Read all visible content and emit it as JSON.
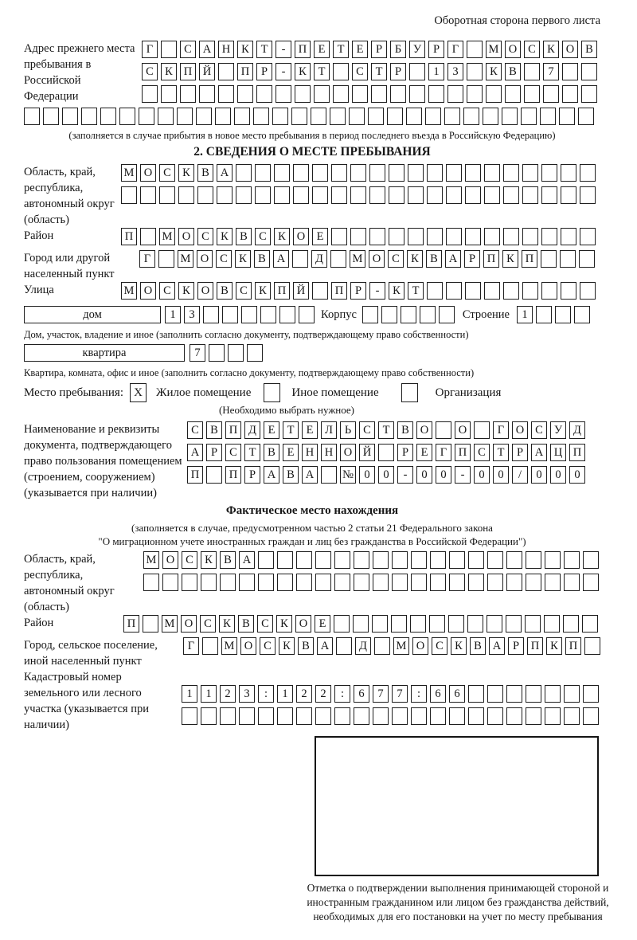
{
  "header": {
    "note": "Оборотная сторона первого листа"
  },
  "prev_address": {
    "label": "Адрес прежнего места пребывания в Российской Федерации",
    "rows": [
      {
        "chars": "Г САНКТ-ПЕТЕРБУРГ МОСКОВ",
        "count": 24
      },
      {
        "chars": "СКПЙ ПР-КТ СТР 13 КВ 7",
        "count": 24
      },
      {
        "chars": "",
        "count": 24
      },
      {
        "chars": "",
        "count": 30
      }
    ],
    "caption": "(заполняется в случае прибытия в новое место пребывания в период последнего въезда в Российскую Федерацию)"
  },
  "section2": {
    "title": "2. СВЕДЕНИЯ О МЕСТЕ ПРЕБЫВАНИЯ",
    "region": {
      "label": "Область, край, республика, автономный округ (область)",
      "rows": [
        {
          "chars": "МОСКВА",
          "count": 25
        },
        {
          "chars": "",
          "count": 25
        }
      ]
    },
    "district": {
      "label": "Район",
      "row": {
        "chars": "П МОСКВСКОЕ",
        "count": 25
      }
    },
    "city": {
      "label": "Город или другой населенный пункт",
      "row": {
        "chars": "Г МОСКВА Д МОСКВАРПКП",
        "count": 24
      }
    },
    "street": {
      "label": "Улица",
      "row": {
        "chars": "МОСКОВСКПЙ ПР-КТ",
        "count": 25
      }
    },
    "house": {
      "type_label": "дом",
      "number": {
        "chars": "13",
        "count": 8
      },
      "korpus_label": "Корпус",
      "korpus": {
        "chars": "",
        "count": 5
      },
      "stroenie_label": "Строение",
      "stroenie": {
        "chars": "1",
        "count": 4
      },
      "caption": "Дом, участок, владение и иное (заполнить согласно документу, подтверждающему право собственности)"
    },
    "apartment": {
      "type_label": "квартира",
      "number": {
        "chars": "7",
        "count": 4
      },
      "caption": "Квартира, комната, офис и иное (заполнить согласно документу, подтверждающему право собственности)"
    },
    "stay": {
      "label": "Место пребывания:",
      "options": [
        {
          "label": "Жилое помещение",
          "mark": "X"
        },
        {
          "label": "Иное помещение",
          "mark": ""
        },
        {
          "label": "Организация",
          "mark": ""
        }
      ],
      "caption": "(Необходимо выбрать нужное)"
    },
    "document": {
      "label": "Наименование и реквизиты документа, подтверждающего право пользования помещением (строением, сооружением) (указывается при наличии)",
      "rows": [
        {
          "chars": "СВПДЕТЕЛЬСТВО О ГОСУД",
          "count": 21
        },
        {
          "chars": "АРСТВЕННОЙ РЕГПСТРАЦП",
          "count": 21
        },
        {
          "chars": "П ПРАВА №00-00-00/000",
          "count": 21
        }
      ]
    }
  },
  "actual_location": {
    "title": "Фактическое место нахождения",
    "caption_line1": "(заполняется в случае, предусмотренном частью 2 статьи 21 Федерального закона",
    "caption_line2": "\"О миграционном учете иностранных граждан и лиц без гражданства в Российской Федерации\")",
    "region": {
      "label": "Область, край, республика, автономный округ (область)",
      "rows": [
        {
          "chars": "МОСКВА",
          "count": 24
        },
        {
          "chars": "",
          "count": 24
        }
      ]
    },
    "district": {
      "label": "Район",
      "row": {
        "chars": "П МОСКВСКОЕ",
        "count": 25
      }
    },
    "city": {
      "label": "Город, сельское поселение, иной населенный пункт",
      "row": {
        "chars": "Г МОСКВА Д МОСКВАРПКП",
        "count": 22
      }
    },
    "cadastral": {
      "label": "Кадастровый номер земельного или лесного участка (указывается при наличии)",
      "rows": [
        {
          "chars": "1123:122:677:66",
          "count": 22
        },
        {
          "chars": "",
          "count": 22
        }
      ]
    },
    "stamp_caption": "Отметка о подтверждении выполнения принимающей стороной и иностранным гражданином или лицом без гражданства действий, необходимых для его постановки на учет по месту пребывания"
  },
  "colors": {
    "ink": "#161616",
    "paper": "#ffffff"
  }
}
